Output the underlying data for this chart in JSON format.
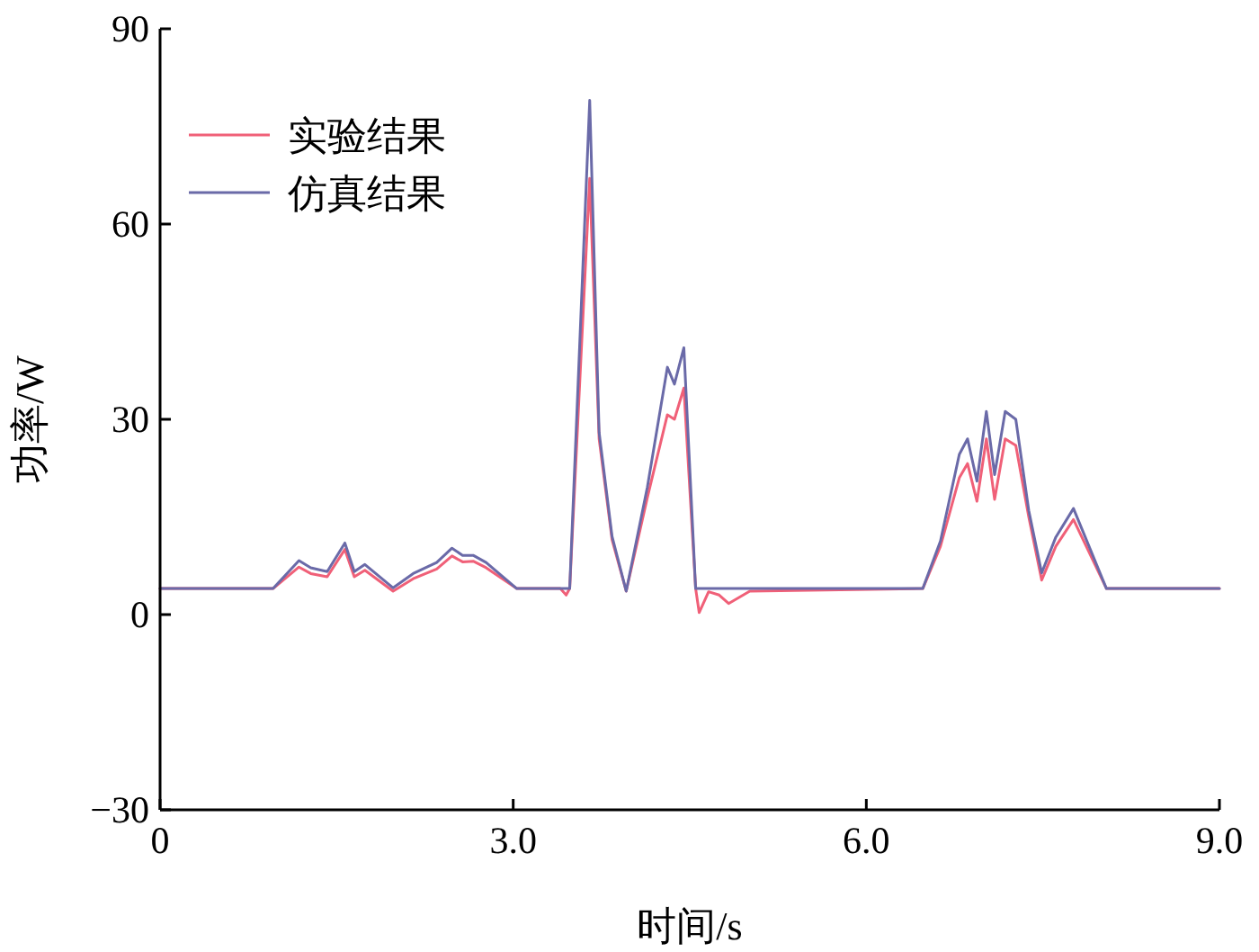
{
  "chart_data": {
    "type": "line",
    "xlabel": "时间/s",
    "ylabel": "功率/W",
    "xlim": [
      0,
      9
    ],
    "ylim": [
      -30,
      90
    ],
    "xticks": [
      0,
      {
        "value": 3,
        "label": "3.0"
      },
      {
        "value": 6,
        "label": "6.0"
      },
      {
        "value": 9,
        "label": "9.0"
      }
    ],
    "yticks": [
      {
        "value": -30,
        "label": "−30"
      },
      0,
      30,
      60,
      90
    ],
    "grid": false,
    "legend": "top left",
    "marker": "none",
    "line_style": "solid",
    "series": [
      {
        "name": "实验结果",
        "color": "#f06078",
        "x": [
          0,
          0.96,
          1.18,
          1.28,
          1.42,
          1.57,
          1.65,
          1.74,
          1.98,
          2.15,
          2.35,
          2.48,
          2.57,
          2.66,
          2.77,
          3.03,
          3.4,
          3.45,
          3.48,
          3.65,
          3.73,
          3.84,
          3.96,
          4.14,
          4.31,
          4.37,
          4.45,
          4.55,
          4.58,
          4.66,
          4.75,
          4.83,
          5.01,
          6.48,
          6.63,
          6.79,
          6.86,
          6.94,
          7.02,
          7.09,
          7.18,
          7.27,
          7.38,
          7.49,
          7.61,
          7.76,
          8.04,
          9
        ],
        "values": [
          4,
          4,
          7.3,
          6.3,
          5.8,
          10,
          5.8,
          6.8,
          3.6,
          5.5,
          7,
          9,
          8.1,
          8.2,
          7.2,
          4,
          4,
          3,
          4,
          67,
          27,
          11.5,
          3.6,
          18,
          30.7,
          30,
          34.8,
          4,
          0.3,
          3.5,
          3,
          1.7,
          3.6,
          4,
          10.5,
          21,
          23.2,
          17.4,
          27,
          17.7,
          27,
          26,
          15,
          5.3,
          10.5,
          14.6,
          4,
          4
        ]
      },
      {
        "name": "仿真结果",
        "color": "#6a6aa8",
        "x": [
          0,
          0.96,
          1.18,
          1.28,
          1.42,
          1.57,
          1.65,
          1.74,
          1.98,
          2.15,
          2.35,
          2.48,
          2.57,
          2.66,
          2.77,
          3.03,
          3.48,
          3.65,
          3.73,
          3.84,
          3.96,
          4.14,
          4.31,
          4.37,
          4.45,
          4.55,
          6.48,
          6.63,
          6.79,
          6.86,
          6.94,
          7.02,
          7.09,
          7.18,
          7.27,
          7.38,
          7.49,
          7.61,
          7.76,
          8.04,
          9
        ],
        "values": [
          4,
          4,
          8.3,
          7.2,
          6.6,
          11,
          6.6,
          7.7,
          4.1,
          6.3,
          8,
          10.2,
          9.1,
          9.1,
          8,
          4,
          4,
          79,
          28,
          12,
          3.6,
          19.6,
          38,
          35.4,
          41,
          4,
          4,
          11.3,
          24.6,
          27,
          20.5,
          31.2,
          21.5,
          31.2,
          30,
          16,
          6.4,
          11.9,
          16.3,
          4,
          4
        ]
      }
    ]
  }
}
